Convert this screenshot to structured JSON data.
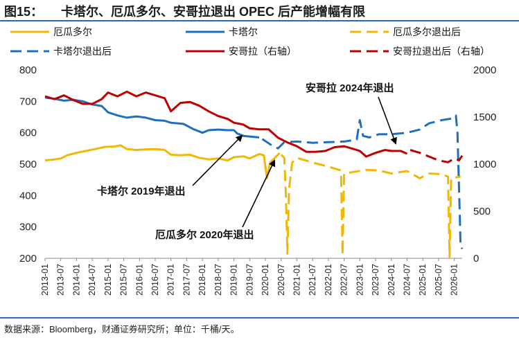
{
  "header": {
    "figure_no": "图15：",
    "title": "卡塔尔、厄瓜多尔、安哥拉退出 OPEC 后产能增幅有限"
  },
  "footer": {
    "source": "数据来源：Bloomberg，财通证券研究所；单位：千桶/天。"
  },
  "colors": {
    "ecuador": "#f2b705",
    "qatar": "#1f6fbf",
    "angola": "#c00000",
    "rule": "#2b66c4"
  },
  "chart_data": {
    "type": "line",
    "title": "",
    "y_left": {
      "range": [
        200,
        800
      ],
      "ticks": [
        "200",
        "300",
        "400",
        "500",
        "600",
        "700",
        "800"
      ]
    },
    "y_right": {
      "range": [
        0,
        2000
      ],
      "ticks": [
        "0",
        "500",
        "1000",
        "1500",
        "2000"
      ]
    },
    "x_range": [
      2013.0,
      2026.25
    ],
    "x_ticks": [
      "2013-01",
      "2013-07",
      "2014-01",
      "2014-07",
      "2015-01",
      "2015-07",
      "2016-01",
      "2016-07",
      "2017-01",
      "2017-07",
      "2018-01",
      "2018-07",
      "2019-01",
      "2019-07",
      "2020-01",
      "2020-07",
      "2021-01",
      "2021-07",
      "2022-01",
      "2022-07",
      "2023-01",
      "2023-07",
      "2024-01",
      "2024-07",
      "2025-01",
      "2025-07",
      "2026-01"
    ],
    "legend": [
      {
        "label": "厄瓜多尔",
        "key": "ecuador",
        "style": "solid"
      },
      {
        "label": "卡塔尔",
        "key": "qatar",
        "style": "solid"
      },
      {
        "label": "厄瓜多尔退出后",
        "key": "ecuador",
        "style": "dashed"
      },
      {
        "label": "卡塔尔退出后",
        "key": "qatar",
        "style": "dashed"
      },
      {
        "label": "安哥拉（右轴）",
        "key": "angola",
        "style": "solid"
      },
      {
        "label": "安哥拉退出后（右轴）",
        "key": "angola",
        "style": "dashed"
      }
    ],
    "annotations": [
      {
        "text": "卡塔尔 2019年退出"
      },
      {
        "text": "厄瓜多尔 2020年退出"
      },
      {
        "text": "安哥拉 2024年退出"
      }
    ],
    "series": [
      {
        "name": "厄瓜多尔",
        "color_key": "ecuador",
        "axis": "left",
        "style": "solid",
        "points": [
          [
            2013.0,
            512
          ],
          [
            2013.3,
            515
          ],
          [
            2013.5,
            518
          ],
          [
            2013.7,
            528
          ],
          [
            2014.0,
            536
          ],
          [
            2014.3,
            542
          ],
          [
            2014.6,
            548
          ],
          [
            2014.9,
            555
          ],
          [
            2015.2,
            556
          ],
          [
            2015.4,
            560
          ],
          [
            2015.6,
            548
          ],
          [
            2015.9,
            545
          ],
          [
            2016.2,
            547
          ],
          [
            2016.5,
            548
          ],
          [
            2016.8,
            545
          ],
          [
            2017.0,
            530
          ],
          [
            2017.3,
            528
          ],
          [
            2017.6,
            530
          ],
          [
            2017.9,
            520
          ],
          [
            2018.2,
            515
          ],
          [
            2018.5,
            518
          ],
          [
            2018.8,
            512
          ],
          [
            2019.0,
            522
          ],
          [
            2019.3,
            525
          ],
          [
            2019.5,
            518
          ],
          [
            2019.8,
            532
          ],
          [
            2019.95,
            528
          ],
          [
            2020.05,
            455
          ],
          [
            2020.15,
            505
          ],
          [
            2020.3,
            520
          ],
          [
            2020.45,
            535
          ]
        ]
      },
      {
        "name": "厄瓜多尔退出后",
        "color_key": "ecuador",
        "axis": "left",
        "style": "dashed",
        "points": [
          [
            2020.5,
            530
          ],
          [
            2020.6,
            520
          ],
          [
            2020.65,
            400
          ],
          [
            2020.7,
            215
          ],
          [
            2020.75,
            420
          ],
          [
            2020.85,
            505
          ],
          [
            2021.0,
            520
          ],
          [
            2021.5,
            505
          ],
          [
            2022.0,
            492
          ],
          [
            2022.4,
            480
          ],
          [
            2022.45,
            210
          ],
          [
            2022.5,
            470
          ],
          [
            2022.8,
            475
          ],
          [
            2023.2,
            482
          ],
          [
            2023.6,
            480
          ],
          [
            2024.0,
            470
          ],
          [
            2024.5,
            478
          ],
          [
            2024.9,
            455
          ],
          [
            2025.2,
            470
          ],
          [
            2025.6,
            468
          ],
          [
            2025.8,
            460
          ],
          [
            2025.85,
            205
          ],
          [
            2025.9,
            455
          ],
          [
            2026.2,
            460
          ]
        ]
      },
      {
        "name": "卡塔尔",
        "color_key": "qatar",
        "axis": "left",
        "style": "solid",
        "points": [
          [
            2013.0,
            712
          ],
          [
            2013.3,
            708
          ],
          [
            2013.6,
            702
          ],
          [
            2013.9,
            705
          ],
          [
            2014.2,
            700
          ],
          [
            2014.5,
            690
          ],
          [
            2014.8,
            685
          ],
          [
            2015.0,
            665
          ],
          [
            2015.3,
            655
          ],
          [
            2015.6,
            648
          ],
          [
            2015.9,
            652
          ],
          [
            2016.2,
            648
          ],
          [
            2016.5,
            640
          ],
          [
            2016.8,
            638
          ],
          [
            2017.0,
            632
          ],
          [
            2017.4,
            628
          ],
          [
            2017.7,
            612
          ],
          [
            2018.0,
            600
          ],
          [
            2018.2,
            608
          ],
          [
            2018.5,
            610
          ],
          [
            2018.8,
            608
          ],
          [
            2019.0,
            608
          ],
          [
            2019.1,
            598
          ],
          [
            2019.3,
            590
          ],
          [
            2019.5,
            588
          ],
          [
            2019.8,
            585
          ]
        ]
      },
      {
        "name": "卡塔尔退出后",
        "color_key": "qatar",
        "axis": "left",
        "style": "dashed",
        "points": [
          [
            2019.9,
            580
          ],
          [
            2020.2,
            560
          ],
          [
            2020.4,
            550
          ],
          [
            2020.6,
            570
          ],
          [
            2021.0,
            572
          ],
          [
            2021.5,
            568
          ],
          [
            2022.0,
            570
          ],
          [
            2022.5,
            572
          ],
          [
            2022.9,
            578
          ],
          [
            2023.0,
            640
          ],
          [
            2023.1,
            590
          ],
          [
            2023.3,
            585
          ],
          [
            2023.6,
            595
          ],
          [
            2024.0,
            595
          ],
          [
            2024.5,
            600
          ],
          [
            2024.9,
            610
          ],
          [
            2025.2,
            630
          ],
          [
            2025.6,
            640
          ],
          [
            2025.9,
            645
          ],
          [
            2026.05,
            655
          ],
          [
            2026.1,
            600
          ],
          [
            2026.15,
            420
          ],
          [
            2026.2,
            240
          ],
          [
            2026.25,
            230
          ]
        ]
      },
      {
        "name": "安哥拉（右轴）",
        "color_key": "angola",
        "axis": "right",
        "style": "solid",
        "points": [
          [
            2013.0,
            1720
          ],
          [
            2013.3,
            1690
          ],
          [
            2013.6,
            1730
          ],
          [
            2013.9,
            1680
          ],
          [
            2014.2,
            1640
          ],
          [
            2014.5,
            1640
          ],
          [
            2014.8,
            1690
          ],
          [
            2015.0,
            1760
          ],
          [
            2015.3,
            1720
          ],
          [
            2015.6,
            1770
          ],
          [
            2015.9,
            1720
          ],
          [
            2016.2,
            1760
          ],
          [
            2016.5,
            1730
          ],
          [
            2016.8,
            1700
          ],
          [
            2017.0,
            1560
          ],
          [
            2017.3,
            1650
          ],
          [
            2017.6,
            1660
          ],
          [
            2017.9,
            1620
          ],
          [
            2018.2,
            1560
          ],
          [
            2018.5,
            1510
          ],
          [
            2018.8,
            1480
          ],
          [
            2019.0,
            1440
          ],
          [
            2019.3,
            1420
          ],
          [
            2019.5,
            1380
          ],
          [
            2019.8,
            1370
          ],
          [
            2020.1,
            1370
          ],
          [
            2020.4,
            1280
          ],
          [
            2020.7,
            1230
          ],
          [
            2021.0,
            1190
          ],
          [
            2021.3,
            1130
          ],
          [
            2021.6,
            1130
          ],
          [
            2021.9,
            1140
          ],
          [
            2022.2,
            1180
          ],
          [
            2022.5,
            1190
          ],
          [
            2022.8,
            1160
          ],
          [
            2023.0,
            1140
          ],
          [
            2023.2,
            1080
          ],
          [
            2023.5,
            1120
          ],
          [
            2023.8,
            1150
          ],
          [
            2024.0,
            1140
          ],
          [
            2024.3,
            1140
          ],
          [
            2024.5,
            1110
          ]
        ]
      },
      {
        "name": "安哥拉退出后（右轴）",
        "color_key": "angola",
        "axis": "right",
        "style": "dashed",
        "points": [
          [
            2024.6,
            1150
          ],
          [
            2024.9,
            1120
          ],
          [
            2025.2,
            1080
          ],
          [
            2025.5,
            1040
          ],
          [
            2025.8,
            1020
          ],
          [
            2026.0,
            1060
          ],
          [
            2026.15,
            1040
          ],
          [
            2026.25,
            1090
          ]
        ]
      }
    ]
  }
}
